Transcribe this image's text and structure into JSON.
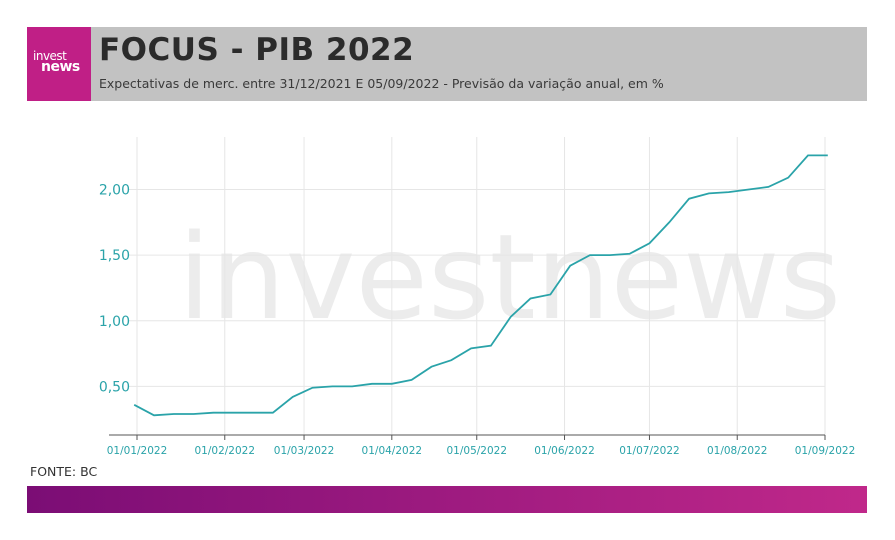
{
  "brand": {
    "logo_line1": "invest",
    "logo_line2": "news",
    "watermark": "investnews"
  },
  "header": {
    "title": "FOCUS - PIB 2022",
    "subtitle": "Expectativas de merc. entre 31/12/2021 E 05/09/2022 - Previsão da variação anual, em %"
  },
  "source": "FONTE: BC",
  "colors": {
    "line": "#2aa3a9",
    "header_bg": "#c2c2c2",
    "logo_bg": "#c01f86",
    "footer_gradient_start": "#7b0d75",
    "footer_gradient_end": "#c0288a"
  },
  "chart_data": {
    "type": "line",
    "title": "FOCUS - PIB 2022",
    "xlabel": "",
    "ylabel": "",
    "x_ticks": [
      "01/01/2022",
      "01/02/2022",
      "01/03/2022",
      "01/04/2022",
      "01/05/2022",
      "01/06/2022",
      "01/07/2022",
      "01/08/2022",
      "01/09/2022"
    ],
    "y_ticks": [
      "0,50",
      "1,00",
      "1,50",
      "2,00"
    ],
    "y_tick_values": [
      0.5,
      1.0,
      1.5,
      2.0
    ],
    "ylim": [
      0.13,
      2.4
    ],
    "grid": true,
    "series": [
      {
        "x": [
          "2021-12-31",
          "2022-01-07",
          "2022-01-14",
          "2022-01-21",
          "2022-01-28",
          "2022-02-04",
          "2022-02-11",
          "2022-02-18",
          "2022-02-25",
          "2022-03-04",
          "2022-03-11",
          "2022-03-18",
          "2022-03-25",
          "2022-04-01",
          "2022-04-08",
          "2022-04-15",
          "2022-04-22",
          "2022-04-29",
          "2022-05-06",
          "2022-05-13",
          "2022-05-20",
          "2022-05-27",
          "2022-06-03",
          "2022-06-10",
          "2022-06-17",
          "2022-06-24",
          "2022-07-01",
          "2022-07-08",
          "2022-07-15",
          "2022-07-22",
          "2022-07-29",
          "2022-08-05",
          "2022-08-12",
          "2022-08-19",
          "2022-08-26",
          "2022-09-02"
        ],
        "values": [
          0.36,
          0.28,
          0.29,
          0.29,
          0.3,
          0.3,
          0.3,
          0.3,
          0.42,
          0.49,
          0.5,
          0.5,
          0.52,
          0.52,
          0.55,
          0.65,
          0.7,
          0.79,
          0.81,
          1.03,
          1.17,
          1.2,
          1.42,
          1.5,
          1.5,
          1.51,
          1.59,
          1.75,
          1.93,
          1.97,
          1.98,
          2.0,
          2.02,
          2.09,
          2.26,
          2.26
        ]
      }
    ]
  }
}
